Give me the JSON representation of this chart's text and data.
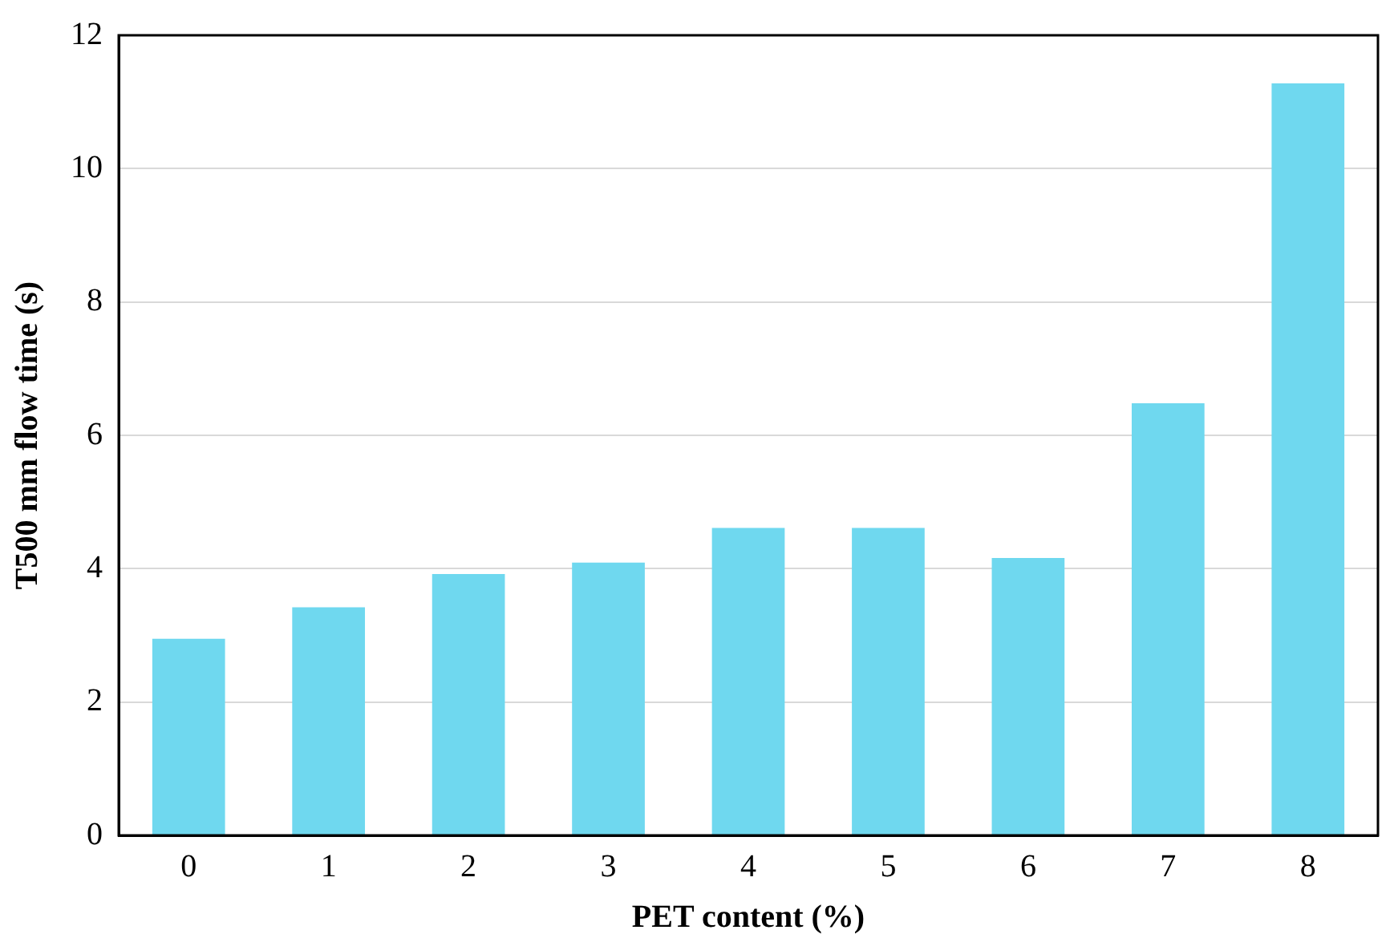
{
  "chart_data": {
    "type": "bar",
    "xlabel": "PET content (%)",
    "ylabel": "T500 mm flow time (s)",
    "categories": [
      "0",
      "1",
      "2",
      "3",
      "4",
      "5",
      "6",
      "7",
      "8"
    ],
    "values": [
      2.95,
      3.42,
      3.92,
      4.09,
      4.61,
      4.61,
      4.16,
      6.48,
      11.28
    ],
    "color": "#6fd8ef",
    "ylim": [
      0,
      12
    ],
    "yticks": [
      0,
      2,
      4,
      6,
      8,
      10,
      12
    ],
    "grid": "y",
    "legend": false
  }
}
